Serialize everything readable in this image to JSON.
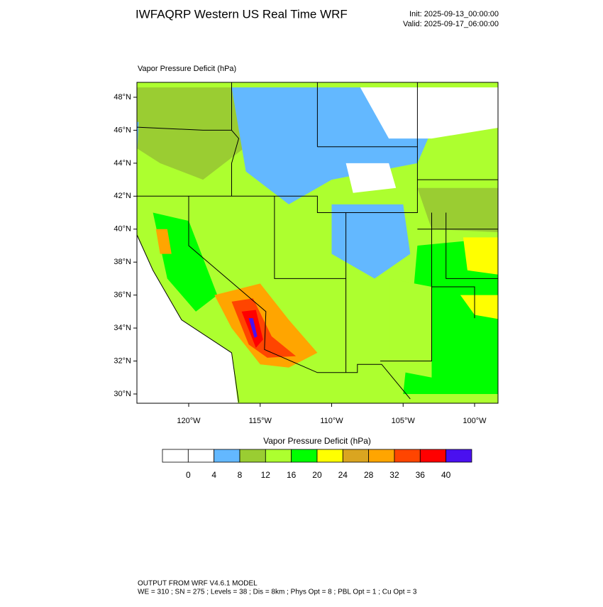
{
  "header": {
    "title": "IWFAQRP Western US Real Time WRF",
    "init": "Init: 2025-09-13_00:00:00",
    "valid": "Valid: 2025-09-17_06:00:00"
  },
  "map": {
    "label": "Vapor Pressure Deficit   (hPa)",
    "lat_ticks": [
      {
        "value": 48,
        "label": "48°N"
      },
      {
        "value": 46,
        "label": "46°N"
      },
      {
        "value": 44,
        "label": "44°N"
      },
      {
        "value": 42,
        "label": "42°N"
      },
      {
        "value": 40,
        "label": "40°N"
      },
      {
        "value": 38,
        "label": "38°N"
      },
      {
        "value": 36,
        "label": "36°N"
      },
      {
        "value": 34,
        "label": "34°N"
      },
      {
        "value": 32,
        "label": "32°N"
      },
      {
        "value": 30,
        "label": "30°N"
      }
    ],
    "lon_ticks": [
      {
        "value": -120,
        "label": "120°W"
      },
      {
        "value": -115,
        "label": "115°W"
      },
      {
        "value": -110,
        "label": "110°W"
      },
      {
        "value": -105,
        "label": "105°W"
      },
      {
        "value": -100,
        "label": "100°W"
      }
    ]
  },
  "colorbar": {
    "title": "Vapor Pressure Deficit  (hPa)",
    "levels": [
      0,
      4,
      8,
      12,
      16,
      20,
      24,
      28,
      32,
      36,
      40
    ],
    "colors": [
      "#ffffff",
      "#ffffff",
      "#63b8ff",
      "#9acd32",
      "#adff2f",
      "#00ff00",
      "#ffff00",
      "#daa520",
      "#ffa500",
      "#ff4500",
      "#ff0000",
      "#4a10f0"
    ]
  },
  "footer": {
    "line1": "OUTPUT FROM WRF V4.6.1 MODEL",
    "line2": "WE = 310 ; SN = 275 ; Levels = 38 ; Dis = 8km ; Phys Opt = 8 ; PBL Opt = 1 ; Cu Opt = 3"
  }
}
